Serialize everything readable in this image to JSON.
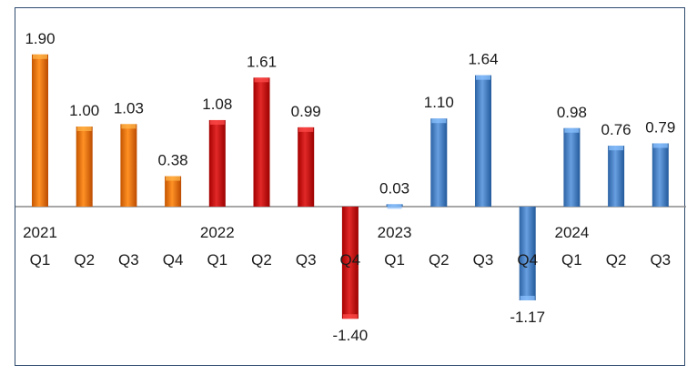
{
  "chart_data": {
    "type": "bar",
    "title": "",
    "xlabel": "",
    "ylabel": "",
    "ylim": [
      -1.5,
      2.0
    ],
    "grid": false,
    "legend": "none",
    "categories": [
      {
        "year": "2021",
        "quarter": "Q1"
      },
      {
        "year": "",
        "quarter": "Q2"
      },
      {
        "year": "",
        "quarter": "Q3"
      },
      {
        "year": "",
        "quarter": "Q4"
      },
      {
        "year": "2022",
        "quarter": "Q1"
      },
      {
        "year": "",
        "quarter": "Q2"
      },
      {
        "year": "",
        "quarter": "Q3"
      },
      {
        "year": "",
        "quarter": "Q4"
      },
      {
        "year": "2023",
        "quarter": "Q1"
      },
      {
        "year": "",
        "quarter": "Q2"
      },
      {
        "year": "",
        "quarter": "Q3"
      },
      {
        "year": "",
        "quarter": "Q4"
      },
      {
        "year": "2024",
        "quarter": "Q1"
      },
      {
        "year": "",
        "quarter": "Q2"
      },
      {
        "year": "",
        "quarter": "Q3"
      }
    ],
    "values": [
      1.9,
      1.0,
      1.03,
      0.38,
      1.08,
      1.61,
      0.99,
      -1.4,
      0.03,
      1.1,
      1.64,
      -1.17,
      0.98,
      0.76,
      0.79
    ],
    "value_labels": [
      "1.90",
      "1.00",
      "1.03",
      "0.38",
      "1.08",
      "1.61",
      "0.99",
      "-1.40",
      "0.03",
      "1.10",
      "1.64",
      "-1.17",
      "0.98",
      "0.76",
      "0.79"
    ],
    "bar_colors": [
      "#e8780c",
      "#e8780c",
      "#e8780c",
      "#e8780c",
      "#c8100f",
      "#c8100f",
      "#c8100f",
      "#c8100f",
      "#4f86c8",
      "#4f86c8",
      "#4f86c8",
      "#4f86c8",
      "#4f86c8",
      "#4f86c8",
      "#4f86c8"
    ],
    "axis_color": "#8a8a8a"
  }
}
